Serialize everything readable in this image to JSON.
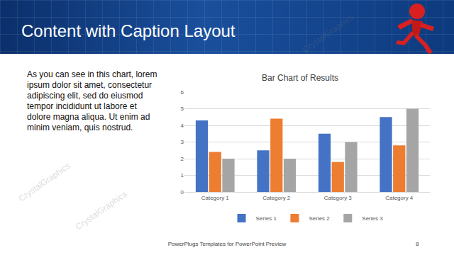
{
  "slide": {
    "title": "Content with Caption Layout",
    "caption": "As you can see in this chart, lorem ipsum dolor sit amet, consectetur adipiscing elit, sed do eiusmod tempor incididunt ut labore et dolore magna aliqua. Ut enim ad minim veniam, quis nostrud.",
    "footer": "PowerPlugs Templates for PowerPoint Preview",
    "page": "8",
    "watermark": "CrystalGraphics"
  },
  "chart_data": {
    "type": "bar",
    "title": "Bar Chart of Results",
    "categories": [
      "Category 1",
      "Category 2",
      "Category 3",
      "Category 4"
    ],
    "series": [
      {
        "name": "Series 1",
        "color": "#4472c4",
        "values": [
          4.3,
          2.5,
          3.5,
          4.5
        ]
      },
      {
        "name": "Series 2",
        "color": "#ed7d31",
        "values": [
          2.4,
          4.4,
          1.8,
          2.8
        ]
      },
      {
        "name": "Series 3",
        "color": "#a5a5a5",
        "values": [
          2,
          2,
          3,
          5
        ]
      }
    ],
    "ylim": [
      0,
      6
    ],
    "yticks": [
      0,
      1,
      2,
      3,
      4,
      5,
      6
    ],
    "grid": true,
    "legend": "bottom"
  }
}
